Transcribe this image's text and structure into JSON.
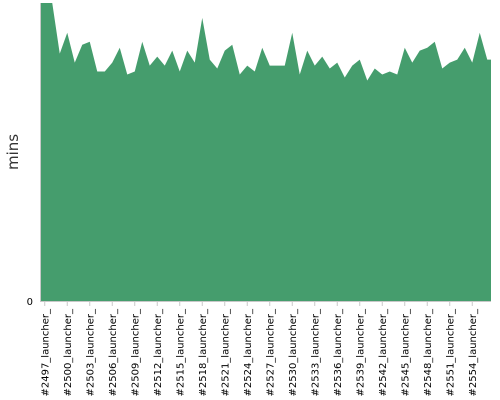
{
  "chart_data": {
    "type": "area",
    "ylabel": "mins",
    "y_zero_label": "0",
    "fill_color": "#459d6d",
    "axis_color": "#c8c8c8",
    "grid": false,
    "x_tick_labels": [
      "#2497_launcher_",
      "#2500_launcher_",
      "#2503_launcher_",
      "#2506_launcher_",
      "#2509_launcher_",
      "#2512_launcher_",
      "#2515_launcher_",
      "#2518_launcher_",
      "#2521_launcher_",
      "#2524_launcher_",
      "#2527_launcher_",
      "#2530_launcher_",
      "#2533_launcher_",
      "#2536_launcher_",
      "#2539_launcher_",
      "#2542_launcher_",
      "#2545_launcher_",
      "#2548_launcher_",
      "#2551_launcher_",
      "#2554_launcher_"
    ],
    "x_start_index": 2497,
    "x_step": 1,
    "ylim": [
      0,
      100
    ],
    "values": [
      100,
      100,
      83,
      90,
      80,
      86,
      87,
      77,
      77,
      80,
      85,
      76,
      77,
      87,
      79,
      82,
      79,
      84,
      77,
      84,
      80,
      95,
      81,
      78,
      84,
      86,
      76,
      79,
      77,
      85,
      79,
      79,
      79,
      90,
      76,
      84,
      79,
      82,
      78,
      80,
      75,
      79,
      81,
      74,
      78,
      76,
      77,
      76,
      85,
      80,
      84,
      85,
      87,
      78,
      80,
      81,
      85,
      80,
      90,
      81
    ]
  }
}
